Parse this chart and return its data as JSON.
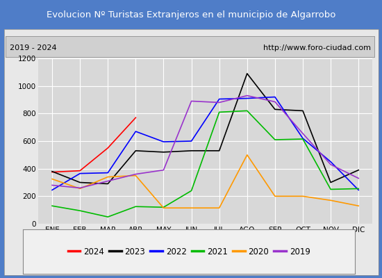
{
  "title": "Evolucion Nº Turistas Extranjeros en el municipio de Algarrobo",
  "subtitle_left": "2019 - 2024",
  "subtitle_right": "http://www.foro-ciudad.com",
  "title_bg_color": "#4f7dc8",
  "title_text_color": "#ffffff",
  "months": [
    "ENE",
    "FEB",
    "MAR",
    "ABR",
    "MAY",
    "JUN",
    "JUL",
    "AGO",
    "SEP",
    "OCT",
    "NOV",
    "DIC"
  ],
  "ylim": [
    0,
    1200
  ],
  "yticks": [
    0,
    200,
    400,
    600,
    800,
    1000,
    1200
  ],
  "series": {
    "2024": {
      "color": "#ff0000",
      "values": [
        375,
        385,
        550,
        770,
        null,
        null,
        null,
        null,
        null,
        null,
        null,
        null
      ]
    },
    "2023": {
      "color": "#000000",
      "values": [
        380,
        300,
        290,
        530,
        520,
        530,
        530,
        1090,
        830,
        820,
        300,
        390
      ]
    },
    "2022": {
      "color": "#0000ff",
      "values": [
        245,
        365,
        370,
        670,
        595,
        600,
        905,
        910,
        920,
        620,
        450,
        245
      ]
    },
    "2021": {
      "color": "#00bb00",
      "values": [
        130,
        95,
        50,
        125,
        120,
        240,
        810,
        820,
        610,
        615,
        250,
        255
      ]
    },
    "2020": {
      "color": "#ff9900",
      "values": [
        325,
        255,
        340,
        350,
        115,
        115,
        115,
        500,
        200,
        200,
        170,
        130
      ]
    },
    "2019": {
      "color": "#9933cc",
      "values": [
        280,
        260,
        310,
        360,
        390,
        890,
        880,
        930,
        885,
        655,
        430,
        330
      ]
    }
  },
  "legend_order": [
    "2024",
    "2023",
    "2022",
    "2021",
    "2020",
    "2019"
  ],
  "plot_bg_color": "#d8d8d8",
  "grid_color": "#ffffff",
  "outer_bg_color": "#4f7dc8",
  "inner_bg_color": "#e8e8e8",
  "subtitle_bg_color": "#d0d0d0"
}
